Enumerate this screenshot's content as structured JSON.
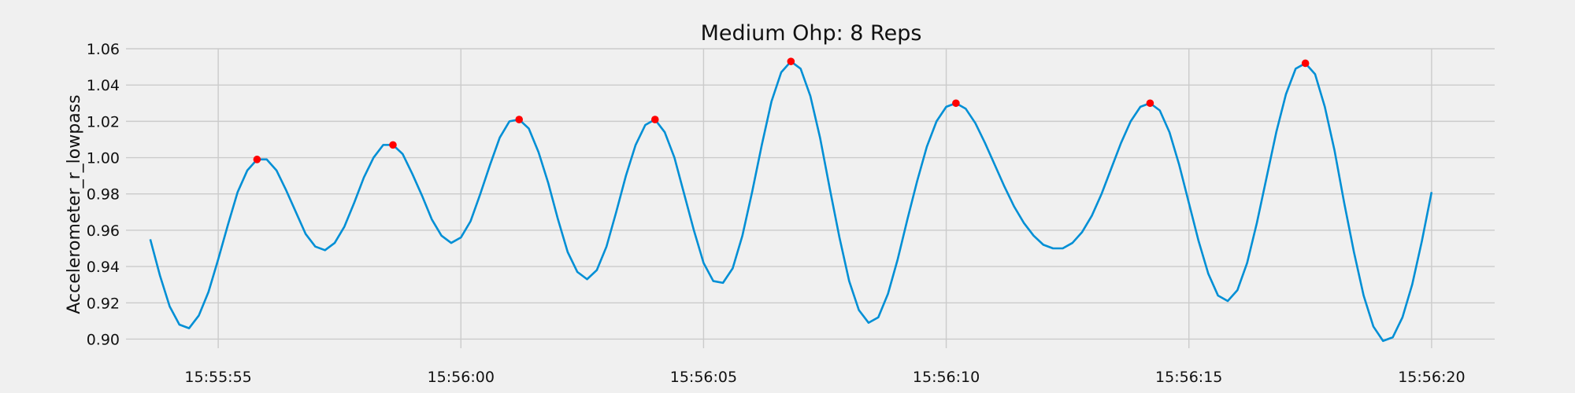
{
  "chart_data": {
    "type": "line",
    "title": "Medium Ohp: 8 Reps",
    "xlabel": "",
    "ylabel": "Accelerometer_r_lowpass",
    "x_unit": "time",
    "xlim": [
      "15:55:53.1",
      "15:56:21.3"
    ],
    "ylim": [
      0.895,
      1.06
    ],
    "x_ticks": [
      "15:55:55",
      "15:56:00",
      "15:56:05",
      "15:56:10",
      "15:56:15",
      "15:56:20"
    ],
    "y_ticks": [
      "0.90",
      "0.92",
      "0.94",
      "0.96",
      "0.98",
      "1.00",
      "1.02",
      "1.04",
      "1.06"
    ],
    "grid": true,
    "colors": {
      "line": "#008fd5",
      "peaks": "#ff0000",
      "background": "#f0f0f0",
      "grid": "#cbcbcb"
    },
    "series": [
      {
        "x": [
          "15:55:53.6",
          "15:55:53.8",
          "15:55:54.0",
          "15:55:54.2",
          "15:55:54.4",
          "15:55:54.6",
          "15:55:54.8",
          "15:55:55.0",
          "15:55:55.2",
          "15:55:55.4",
          "15:55:55.6",
          "15:55:55.8",
          "15:55:56.0",
          "15:55:56.2",
          "15:55:56.4",
          "15:55:56.6",
          "15:55:56.8",
          "15:55:57.0",
          "15:55:57.2",
          "15:55:57.4",
          "15:55:57.6",
          "15:55:57.8",
          "15:55:58.0",
          "15:55:58.2",
          "15:55:58.4",
          "15:55:58.6",
          "15:55:58.8",
          "15:55:59.0",
          "15:55:59.2",
          "15:55:59.4",
          "15:55:59.6",
          "15:55:59.8",
          "15:56:00.0",
          "15:56:00.2",
          "15:56:00.4",
          "15:56:00.6",
          "15:56:00.8",
          "15:56:01.0",
          "15:56:01.2",
          "15:56:01.4",
          "15:56:01.6",
          "15:56:01.8",
          "15:56:02.0",
          "15:56:02.2",
          "15:56:02.4",
          "15:56:02.6",
          "15:56:02.8",
          "15:56:03.0",
          "15:56:03.2",
          "15:56:03.4",
          "15:56:03.6",
          "15:56:03.8",
          "15:56:04.0",
          "15:56:04.2",
          "15:56:04.4",
          "15:56:04.6",
          "15:56:04.8",
          "15:56:05.0",
          "15:56:05.2",
          "15:56:05.4",
          "15:56:05.6",
          "15:56:05.8",
          "15:56:06.0",
          "15:56:06.2",
          "15:56:06.4",
          "15:56:06.6",
          "15:56:06.8",
          "15:56:07.0",
          "15:56:07.2",
          "15:56:07.4",
          "15:56:07.6",
          "15:56:07.8",
          "15:56:08.0",
          "15:56:08.2",
          "15:56:08.4",
          "15:56:08.6",
          "15:56:08.8",
          "15:56:09.0",
          "15:56:09.2",
          "15:56:09.4",
          "15:56:09.6",
          "15:56:09.8",
          "15:56:10.0",
          "15:56:10.2",
          "15:56:10.4",
          "15:56:10.6",
          "15:56:10.8",
          "15:56:11.0",
          "15:56:11.2",
          "15:56:11.4",
          "15:56:11.6",
          "15:56:11.8",
          "15:56:12.0",
          "15:56:12.2",
          "15:56:12.4",
          "15:56:12.6",
          "15:56:12.8",
          "15:56:13.0",
          "15:56:13.2",
          "15:56:13.4",
          "15:56:13.6",
          "15:56:13.8",
          "15:56:14.0",
          "15:56:14.2",
          "15:56:14.4",
          "15:56:14.6",
          "15:56:14.8",
          "15:56:15.0",
          "15:56:15.2",
          "15:56:15.4",
          "15:56:15.6",
          "15:56:15.8",
          "15:56:16.0",
          "15:56:16.2",
          "15:56:16.4",
          "15:56:16.6",
          "15:56:16.8",
          "15:56:17.0",
          "15:56:17.2",
          "15:56:17.4",
          "15:56:17.6",
          "15:56:17.8",
          "15:56:18.0",
          "15:56:18.2",
          "15:56:18.4",
          "15:56:18.6",
          "15:56:18.8",
          "15:56:19.0",
          "15:56:19.2",
          "15:56:19.4",
          "15:56:19.6",
          "15:56:19.8",
          "15:56:20.0"
        ],
        "y": [
          0.955,
          0.935,
          0.918,
          0.908,
          0.906,
          0.913,
          0.926,
          0.944,
          0.963,
          0.981,
          0.993,
          0.999,
          0.999,
          0.993,
          0.982,
          0.97,
          0.958,
          0.951,
          0.949,
          0.953,
          0.962,
          0.975,
          0.989,
          1.0,
          1.007,
          1.007,
          1.002,
          0.991,
          0.979,
          0.966,
          0.957,
          0.953,
          0.956,
          0.965,
          0.98,
          0.996,
          1.011,
          1.02,
          1.021,
          1.016,
          1.003,
          0.986,
          0.966,
          0.948,
          0.937,
          0.933,
          0.938,
          0.951,
          0.97,
          0.99,
          1.007,
          1.018,
          1.021,
          1.014,
          1.0,
          0.98,
          0.96,
          0.942,
          0.932,
          0.931,
          0.939,
          0.957,
          0.981,
          1.007,
          1.031,
          1.047,
          1.053,
          1.049,
          1.034,
          1.011,
          0.983,
          0.956,
          0.932,
          0.916,
          0.909,
          0.912,
          0.925,
          0.944,
          0.966,
          0.987,
          1.006,
          1.02,
          1.028,
          1.03,
          1.027,
          1.019,
          1.008,
          0.996,
          0.984,
          0.973,
          0.964,
          0.957,
          0.952,
          0.95,
          0.95,
          0.953,
          0.959,
          0.968,
          0.98,
          0.994,
          1.008,
          1.02,
          1.028,
          1.03,
          1.026,
          1.014,
          0.996,
          0.975,
          0.954,
          0.936,
          0.924,
          0.921,
          0.927,
          0.942,
          0.964,
          0.989,
          1.014,
          1.035,
          1.049,
          1.052,
          1.046,
          1.028,
          1.004,
          0.975,
          0.948,
          0.924,
          0.907,
          0.899,
          0.901,
          0.912,
          0.93,
          0.954,
          0.981
        ]
      },
      {
        "type": "scatter",
        "x": [
          "15:55:55.8",
          "15:55:58.6",
          "15:56:01.2",
          "15:56:04.0",
          "15:56:06.8",
          "15:56:10.2",
          "15:56:14.2",
          "15:56:17.4"
        ],
        "y": [
          0.999,
          1.007,
          1.021,
          1.021,
          1.053,
          1.03,
          1.03,
          1.052
        ]
      }
    ]
  }
}
